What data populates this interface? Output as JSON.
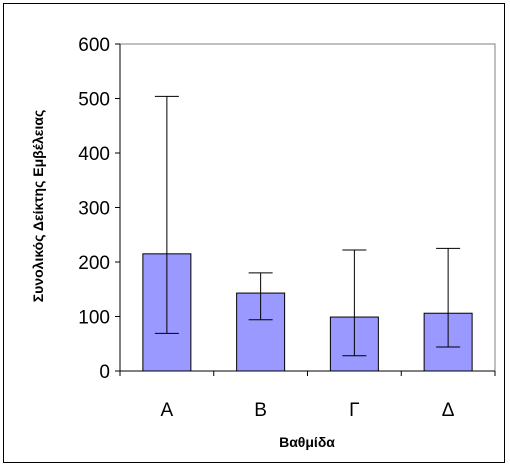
{
  "chart_data": {
    "type": "bar",
    "title": "",
    "xlabel": "Βαθμίδα",
    "ylabel": "Συνολικός Δείκτης Εμβέλειας",
    "categories": [
      "Α",
      "Β",
      "Γ",
      "Δ"
    ],
    "values": [
      215,
      143,
      99,
      106
    ],
    "error_low": [
      69,
      94,
      28,
      44
    ],
    "error_high": [
      504,
      180,
      222,
      225
    ],
    "ylim": [
      0,
      600
    ],
    "yticks": [
      0,
      100,
      200,
      300,
      400,
      500,
      600
    ],
    "grid": false,
    "legend": "none",
    "bar_color": "#9999FF",
    "plot_background": "#FFFFFF"
  }
}
